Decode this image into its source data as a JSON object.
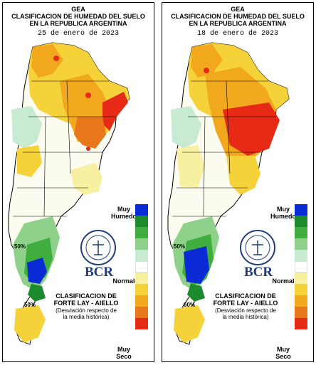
{
  "maps": [
    {
      "org": "GEA",
      "title_line1": "CLASIFICACION DE HUMEDAD DEL SUELO",
      "title_line2": "EN LA REPUBLICA ARGENTINA",
      "date": "25 de enero de 2023",
      "contour_label_a": "50%",
      "contour_label_b": "50%"
    },
    {
      "org": "GEA",
      "title_line1": "CLASIFICACION DE HUMEDAD DEL SUELO",
      "title_line2": "EN LA REPUBLICA ARGENTINA",
      "date": "18 de enero de 2023",
      "contour_label_a": "50%",
      "contour_label_b": "60%"
    }
  ],
  "legend": {
    "top_label": "Muy Humedo",
    "mid_label": "Normal",
    "bottom_label": "Muy Seco",
    "colors": [
      "#0a2ad6",
      "#1e8a2e",
      "#3fae3f",
      "#8fd08a",
      "#c8ead0",
      "#ffffff",
      "#f7f0a0",
      "#f5d23a",
      "#f2a81d",
      "#e8761a",
      "#e62a16"
    ]
  },
  "logo": {
    "brand": "BCR",
    "seal_text": "BOLSA DE COMERCIO DE ROSARIO"
  },
  "source": {
    "line1": "CLASIFICACION DE",
    "line2": "FORTE LAY - AIELLO",
    "note1": "(Desviación respecto de",
    "note2": "la media histórica)"
  }
}
